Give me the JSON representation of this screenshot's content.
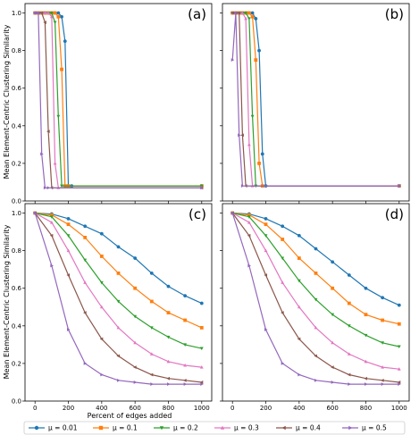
{
  "figure": {
    "ylabel": "Mean Element-Centric Clustering Similarity",
    "xlabel": "Percent of edges added"
  },
  "colors": {
    "s0": "#1f77b4",
    "s1": "#ff7f0e",
    "s2": "#2ca02c",
    "s3": "#e377c2",
    "s4": "#8c564b",
    "s5": "#9467bd"
  },
  "legend": [
    {
      "label": "μ = 0.01",
      "marker": "circle",
      "color_key": "s0"
    },
    {
      "label": "μ = 0.1",
      "marker": "square",
      "color_key": "s1"
    },
    {
      "label": "μ = 0.2",
      "marker": "triangle-down",
      "color_key": "s2"
    },
    {
      "label": "μ = 0.3",
      "marker": "triangle-up",
      "color_key": "s3"
    },
    {
      "label": "μ = 0.4",
      "marker": "triangle-left",
      "color_key": "s4"
    },
    {
      "label": "μ = 0.5",
      "marker": "triangle-right",
      "color_key": "s5"
    }
  ],
  "chart_data": [
    {
      "type": "line",
      "panel": "(a)",
      "xlim": [
        -60,
        1060
      ],
      "ylim": [
        0.0,
        1.05
      ],
      "xticks": [
        0,
        200,
        400,
        600,
        800,
        1000
      ],
      "yticks": [
        0.0,
        0.2,
        0.4,
        0.6,
        0.8,
        1.0
      ],
      "show_xticklabels": false,
      "show_yticklabels": true,
      "series": [
        {
          "name": "μ = 0.01",
          "color_key": "s0",
          "x": [
            0,
            20,
            40,
            60,
            80,
            100,
            120,
            140,
            160,
            180,
            200,
            220,
            1000
          ],
          "y": [
            1,
            1,
            1,
            1,
            1,
            1,
            1,
            1,
            0.98,
            0.85,
            0.08,
            0.08,
            0.08
          ]
        },
        {
          "name": "μ = 0.1",
          "color_key": "s1",
          "x": [
            0,
            20,
            40,
            60,
            80,
            100,
            120,
            140,
            160,
            180,
            200,
            1000
          ],
          "y": [
            1,
            1,
            1,
            1,
            1,
            1,
            1,
            0.98,
            0.7,
            0.08,
            0.08,
            0.08
          ]
        },
        {
          "name": "μ = 0.2",
          "color_key": "s2",
          "x": [
            0,
            20,
            40,
            60,
            80,
            100,
            120,
            140,
            160,
            1000
          ],
          "y": [
            1,
            1,
            1,
            1,
            1,
            1,
            0.95,
            0.45,
            0.08,
            0.08
          ]
        },
        {
          "name": "μ = 0.3",
          "color_key": "s3",
          "x": [
            0,
            20,
            40,
            60,
            80,
            100,
            120,
            140,
            1000
          ],
          "y": [
            1,
            1,
            1,
            1,
            1,
            0.98,
            0.2,
            0.07,
            0.07
          ]
        },
        {
          "name": "μ = 0.4",
          "color_key": "s4",
          "x": [
            0,
            20,
            40,
            60,
            80,
            100,
            1000
          ],
          "y": [
            1,
            1,
            1,
            0.95,
            0.37,
            0.07,
            0.07
          ]
        },
        {
          "name": "μ = 0.5",
          "color_key": "s5",
          "x": [
            0,
            20,
            40,
            60,
            80,
            1000
          ],
          "y": [
            1,
            1,
            0.25,
            0.07,
            0.07,
            0.07
          ]
        }
      ]
    },
    {
      "type": "line",
      "panel": "(b)",
      "xlim": [
        -60,
        1060
      ],
      "ylim": [
        0.0,
        1.05
      ],
      "xticks": [
        0,
        200,
        400,
        600,
        800,
        1000
      ],
      "yticks": [
        0.0,
        0.2,
        0.4,
        0.6,
        0.8,
        1.0
      ],
      "show_xticklabels": false,
      "show_yticklabels": false,
      "series": [
        {
          "name": "μ = 0.01",
          "color_key": "s0",
          "x": [
            0,
            20,
            40,
            60,
            80,
            100,
            120,
            140,
            160,
            180,
            200,
            1000
          ],
          "y": [
            1,
            1,
            1,
            1,
            1,
            1,
            1,
            0.97,
            0.8,
            0.25,
            0.08,
            0.08
          ]
        },
        {
          "name": "μ = 0.1",
          "color_key": "s1",
          "x": [
            0,
            20,
            40,
            60,
            80,
            100,
            120,
            140,
            160,
            180,
            1000
          ],
          "y": [
            1,
            1,
            1,
            1,
            1,
            1,
            0.98,
            0.75,
            0.2,
            0.08,
            0.08
          ]
        },
        {
          "name": "μ = 0.2",
          "color_key": "s2",
          "x": [
            0,
            20,
            40,
            60,
            80,
            100,
            120,
            140,
            1000
          ],
          "y": [
            1,
            1,
            1,
            1,
            1,
            0.97,
            0.45,
            0.08,
            0.08
          ]
        },
        {
          "name": "μ = 0.3",
          "color_key": "s3",
          "x": [
            0,
            20,
            40,
            60,
            80,
            100,
            120,
            1000
          ],
          "y": [
            1,
            1,
            1,
            1,
            0.97,
            0.3,
            0.08,
            0.08
          ]
        },
        {
          "name": "μ = 0.4",
          "color_key": "s4",
          "x": [
            0,
            20,
            40,
            60,
            80,
            1000
          ],
          "y": [
            1,
            1,
            1,
            0.35,
            0.08,
            0.08
          ]
        },
        {
          "name": "μ = 0.5",
          "color_key": "s5",
          "x": [
            0,
            20,
            40,
            60,
            1000
          ],
          "y": [
            0.75,
            1,
            0.35,
            0.08,
            0.08
          ]
        }
      ]
    },
    {
      "type": "line",
      "panel": "(c)",
      "xlim": [
        -60,
        1060
      ],
      "ylim": [
        0.0,
        1.05
      ],
      "xticks": [
        0,
        200,
        400,
        600,
        800,
        1000
      ],
      "yticks": [
        0.0,
        0.2,
        0.4,
        0.6,
        0.8,
        1.0
      ],
      "show_xticklabels": true,
      "show_yticklabels": true,
      "series": [
        {
          "name": "μ = 0.01",
          "color_key": "s0",
          "x": [
            0,
            100,
            200,
            300,
            400,
            500,
            600,
            700,
            800,
            900,
            1000
          ],
          "y": [
            1.0,
            0.995,
            0.97,
            0.93,
            0.89,
            0.82,
            0.76,
            0.68,
            0.61,
            0.56,
            0.52
          ]
        },
        {
          "name": "μ = 0.1",
          "color_key": "s1",
          "x": [
            0,
            100,
            200,
            300,
            400,
            500,
            600,
            700,
            800,
            900,
            1000
          ],
          "y": [
            1.0,
            0.99,
            0.94,
            0.87,
            0.77,
            0.68,
            0.6,
            0.53,
            0.47,
            0.43,
            0.39
          ]
        },
        {
          "name": "μ = 0.2",
          "color_key": "s2",
          "x": [
            0,
            100,
            200,
            300,
            400,
            500,
            600,
            700,
            800,
            900,
            1000
          ],
          "y": [
            1.0,
            0.98,
            0.88,
            0.75,
            0.63,
            0.53,
            0.45,
            0.39,
            0.34,
            0.3,
            0.28
          ]
        },
        {
          "name": "μ = 0.3",
          "color_key": "s3",
          "x": [
            0,
            100,
            200,
            300,
            400,
            500,
            600,
            700,
            800,
            900,
            1000
          ],
          "y": [
            1.0,
            0.95,
            0.8,
            0.63,
            0.5,
            0.39,
            0.31,
            0.25,
            0.21,
            0.19,
            0.18
          ]
        },
        {
          "name": "μ = 0.4",
          "color_key": "s4",
          "x": [
            0,
            100,
            200,
            300,
            400,
            500,
            600,
            700,
            800,
            900,
            1000
          ],
          "y": [
            1.0,
            0.88,
            0.67,
            0.47,
            0.33,
            0.24,
            0.18,
            0.14,
            0.12,
            0.11,
            0.1
          ]
        },
        {
          "name": "μ = 0.5",
          "color_key": "s5",
          "x": [
            0,
            100,
            200,
            300,
            400,
            500,
            600,
            700,
            800,
            900,
            1000
          ],
          "y": [
            1.0,
            0.72,
            0.38,
            0.2,
            0.14,
            0.11,
            0.1,
            0.09,
            0.09,
            0.09,
            0.09
          ]
        }
      ]
    },
    {
      "type": "line",
      "panel": "(d)",
      "xlim": [
        -60,
        1060
      ],
      "ylim": [
        0.0,
        1.05
      ],
      "xticks": [
        0,
        200,
        400,
        600,
        800,
        1000
      ],
      "yticks": [
        0.0,
        0.2,
        0.4,
        0.6,
        0.8,
        1.0
      ],
      "show_xticklabels": true,
      "show_yticklabels": false,
      "series": [
        {
          "name": "μ = 0.01",
          "color_key": "s0",
          "x": [
            0,
            100,
            200,
            300,
            400,
            500,
            600,
            700,
            800,
            900,
            1000
          ],
          "y": [
            1.0,
            0.995,
            0.97,
            0.93,
            0.88,
            0.81,
            0.74,
            0.67,
            0.6,
            0.55,
            0.51
          ]
        },
        {
          "name": "μ = 0.1",
          "color_key": "s1",
          "x": [
            0,
            100,
            200,
            300,
            400,
            500,
            600,
            700,
            800,
            900,
            1000
          ],
          "y": [
            1.0,
            0.99,
            0.94,
            0.86,
            0.76,
            0.68,
            0.6,
            0.52,
            0.46,
            0.43,
            0.41
          ]
        },
        {
          "name": "μ = 0.2",
          "color_key": "s2",
          "x": [
            0,
            100,
            200,
            300,
            400,
            500,
            600,
            700,
            800,
            900,
            1000
          ],
          "y": [
            1.0,
            0.98,
            0.88,
            0.76,
            0.64,
            0.54,
            0.46,
            0.4,
            0.35,
            0.31,
            0.29
          ]
        },
        {
          "name": "μ = 0.3",
          "color_key": "s3",
          "x": [
            0,
            100,
            200,
            300,
            400,
            500,
            600,
            700,
            800,
            900,
            1000
          ],
          "y": [
            1.0,
            0.95,
            0.8,
            0.63,
            0.5,
            0.39,
            0.31,
            0.25,
            0.21,
            0.18,
            0.17
          ]
        },
        {
          "name": "μ = 0.4",
          "color_key": "s4",
          "x": [
            0,
            100,
            200,
            300,
            400,
            500,
            600,
            700,
            800,
            900,
            1000
          ],
          "y": [
            1.0,
            0.88,
            0.67,
            0.47,
            0.33,
            0.24,
            0.18,
            0.14,
            0.12,
            0.11,
            0.1
          ]
        },
        {
          "name": "μ = 0.5",
          "color_key": "s5",
          "x": [
            0,
            100,
            200,
            300,
            400,
            500,
            600,
            700,
            800,
            900,
            1000
          ],
          "y": [
            1.0,
            0.72,
            0.38,
            0.2,
            0.14,
            0.11,
            0.1,
            0.09,
            0.09,
            0.09,
            0.09
          ]
        }
      ]
    }
  ]
}
